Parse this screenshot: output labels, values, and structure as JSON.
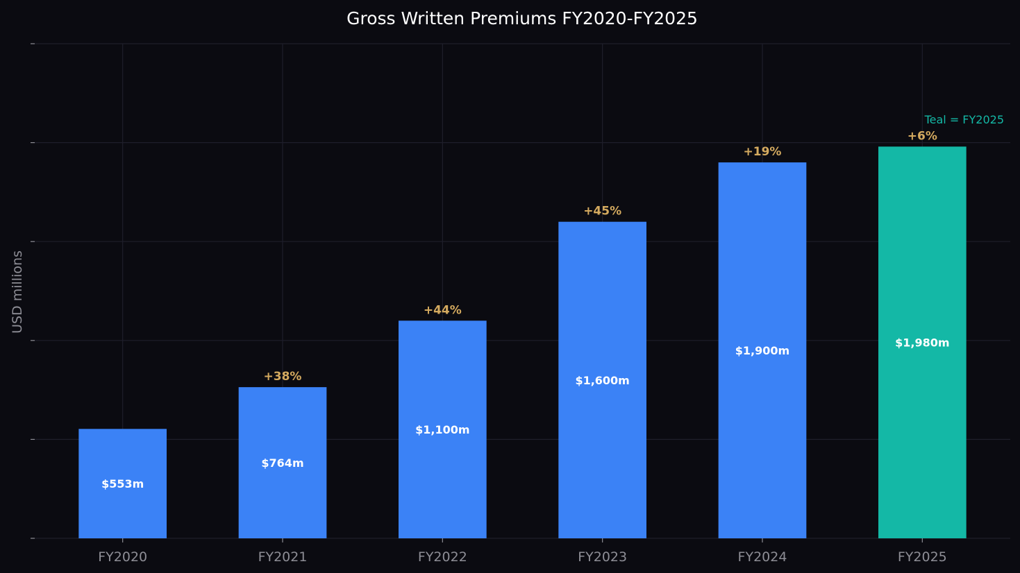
{
  "chart_data": {
    "type": "bar",
    "title": "Gross Written Premiums FY2020-FY2025",
    "xlabel": "",
    "ylabel": "USD millions",
    "ylim": [
      0,
      2500
    ],
    "grid": true,
    "categories": [
      "FY2020",
      "FY2021",
      "FY2022",
      "FY2023",
      "FY2024",
      "FY2025"
    ],
    "values": [
      553,
      764,
      1100,
      1600,
      1900,
      1980
    ],
    "value_labels": [
      "$553m",
      "$764m",
      "$1,100m",
      "$1,600m",
      "$1,900m",
      "$1,980m"
    ],
    "growth_labels": [
      "",
      "+38%",
      "+44%",
      "+45%",
      "+19%",
      "+6%"
    ],
    "annotation": "Teal = FY2025",
    "colors": {
      "bar": "#3b82f6",
      "highlight": "#14b8a6",
      "growth_text": "#d4aa5f",
      "value_text": "#ffffff",
      "tick_text": "#8e8e96",
      "title_text": "#ffffff",
      "grid": "#1f1f2b",
      "background": "#0b0b11"
    },
    "highlight_index": 5
  }
}
